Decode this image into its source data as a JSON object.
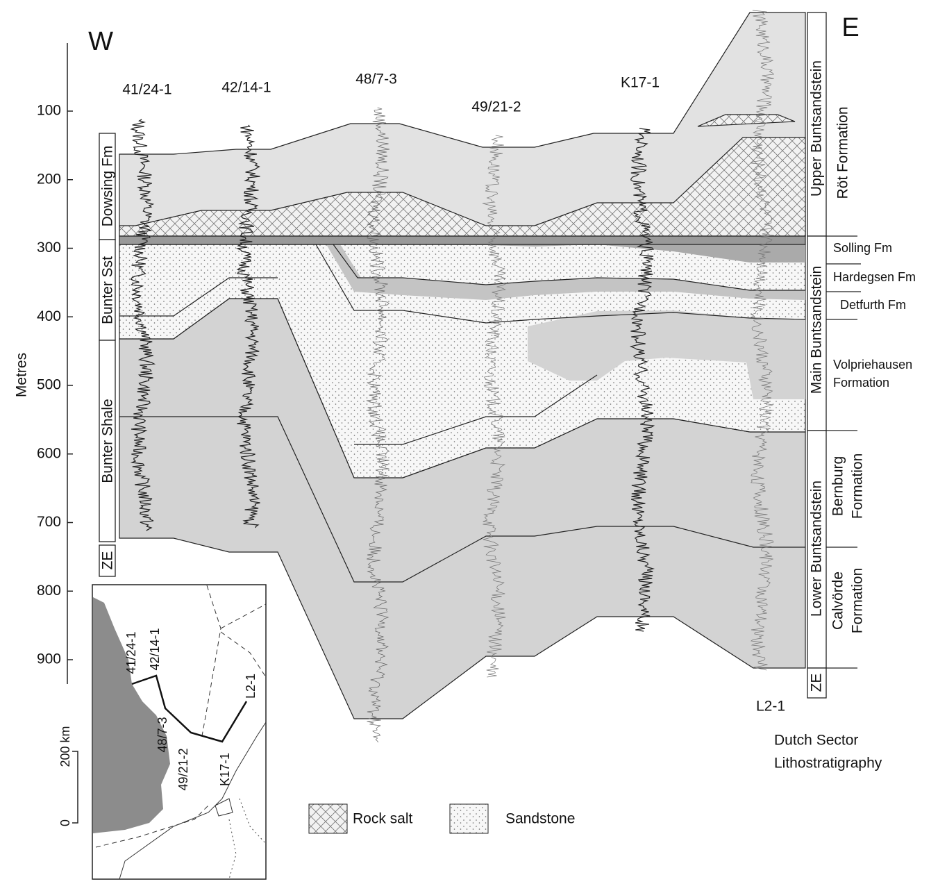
{
  "direction": {
    "west": "W",
    "east": "E"
  },
  "depth_axis": {
    "label": "Metres",
    "ticks": [
      100,
      200,
      300,
      400,
      500,
      600,
      700,
      800,
      900
    ]
  },
  "wells": [
    "41/24-1",
    "42/14-1",
    "48/7-3",
    "49/21-2",
    "K17-1",
    "L2-1"
  ],
  "left_units": [
    "Dowsing Fm",
    "Bunter Sst",
    "Bunter Shale",
    "ZE"
  ],
  "lithostratigraphy": {
    "title": [
      "Dutch Sector",
      "Lithostratigraphy"
    ],
    "groups": [
      "Upper Buntsandstein",
      "Main Buntsandstein",
      "Lower Buntsandstein",
      "ZE"
    ],
    "formations": [
      [
        "Röt Formation"
      ],
      [
        "Solling Fm"
      ],
      [
        "Hardegsen Fm"
      ],
      [
        "Detfurth Fm"
      ],
      [
        "Volpriehausen",
        "Formation"
      ],
      [
        "Bernburg",
        "Formation"
      ],
      [
        "Calvörde",
        "Formation"
      ]
    ]
  },
  "legend": [
    "Rock salt",
    "Sandstone"
  ],
  "inset_map": {
    "scale_label": "200 km",
    "scale_zero": 0
  }
}
